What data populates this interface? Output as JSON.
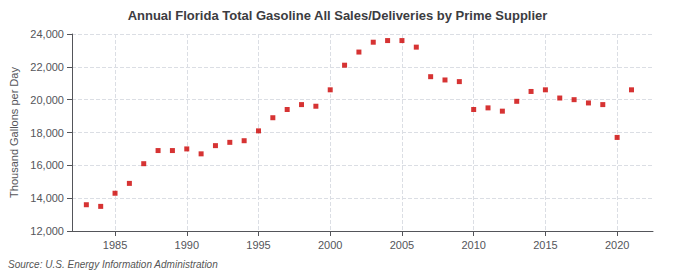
{
  "chart_data": {
    "type": "scatter",
    "title": "Annual Florida Total Gasoline All Sales/Deliveries by Prime Supplier",
    "ylabel": "Thousand Gallons per Day",
    "source": "Source: U.S. Energy Information Administration",
    "x": [
      1983,
      1984,
      1985,
      1986,
      1987,
      1988,
      1989,
      1990,
      1991,
      1992,
      1993,
      1994,
      1995,
      1996,
      1997,
      1998,
      1999,
      2000,
      2001,
      2002,
      2003,
      2004,
      2005,
      2006,
      2007,
      2008,
      2009,
      2010,
      2011,
      2012,
      2013,
      2014,
      2015,
      2016,
      2017,
      2018,
      2019,
      2020,
      2021
    ],
    "values": [
      13600,
      13500,
      14300,
      14900,
      16100,
      16900,
      16900,
      17000,
      16700,
      17200,
      17400,
      17500,
      18100,
      18900,
      19400,
      19700,
      19600,
      20600,
      22100,
      22900,
      23500,
      23600,
      23600,
      23200,
      21400,
      21200,
      21100,
      19400,
      19500,
      19300,
      19900,
      20500,
      20600,
      20100,
      20000,
      19800,
      19700,
      17700,
      20600
    ],
    "color": "#cc0000",
    "marker": "square",
    "xlim": [
      1982,
      2022.5
    ],
    "xticks": [
      1985,
      1990,
      1995,
      2000,
      2005,
      2010,
      2015,
      2020
    ],
    "ylim": [
      12000,
      24000
    ],
    "yticks": [
      {
        "value": 12000,
        "label": "12,000"
      },
      {
        "value": 14000,
        "label": "14,000"
      },
      {
        "value": 16000,
        "label": "16,000"
      },
      {
        "value": 18000,
        "label": "18,000"
      },
      {
        "value": 20000,
        "label": "20,000"
      },
      {
        "value": 22000,
        "label": "22,000"
      },
      {
        "value": 24000,
        "label": "24,000"
      }
    ],
    "grid": true
  }
}
